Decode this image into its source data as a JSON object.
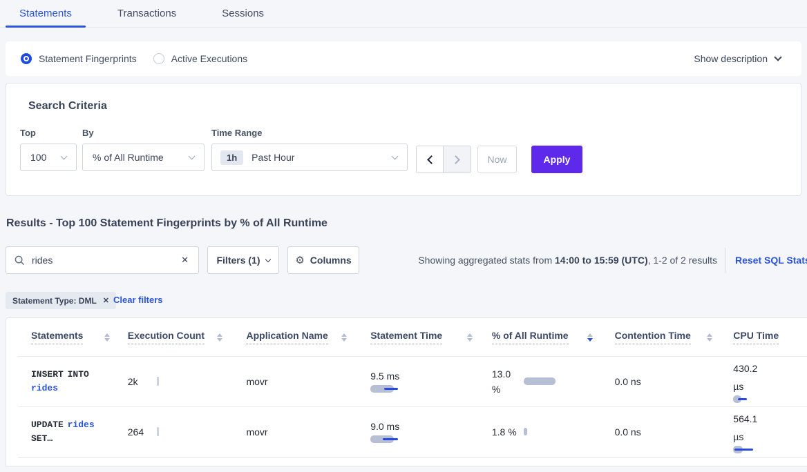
{
  "colors": {
    "accent_blue": "#2b55d8",
    "apply_purple": "#5f29ec",
    "bar_gray": "#b6bfd3",
    "bar_blue": "#2948dd",
    "chip_bg": "#e5e9f0"
  },
  "tabs": {
    "active_index": 0,
    "items": [
      {
        "label": "Statements"
      },
      {
        "label": "Transactions"
      },
      {
        "label": "Sessions"
      }
    ]
  },
  "view_bar": {
    "radios": [
      {
        "label": "Statement Fingerprints",
        "selected": true
      },
      {
        "label": "Active Executions",
        "selected": false
      }
    ],
    "show_description_label": "Show description"
  },
  "search_criteria": {
    "title": "Search Criteria",
    "top": {
      "label": "Top",
      "value": "100"
    },
    "by": {
      "label": "By",
      "value": "% of All Runtime"
    },
    "time_range": {
      "label": "Time Range",
      "badge": "1h",
      "value": "Past Hour"
    },
    "now_label": "Now",
    "apply_label": "Apply"
  },
  "results": {
    "heading": "Results - Top 100 Statement Fingerprints by % of All Runtime",
    "search_value": "rides",
    "clear_glyph": "✕",
    "filters_label": "Filters (1)",
    "columns_label": "Columns",
    "gear_glyph": "⚙",
    "stats_prefix": "Showing aggregated stats from ",
    "stats_strong": "14:00 to 15:59 (UTC)",
    "stats_suffix": ", 1-2 of 2 results",
    "reset_label": "Reset SQL Stats",
    "filter_chip": "Statement Type: DML",
    "chip_close_glyph": "✕",
    "clear_filters_label": "Clear filters"
  },
  "table": {
    "columns": [
      {
        "label": "Statements",
        "sorted": "none"
      },
      {
        "label": "Execution Count",
        "sorted": "none"
      },
      {
        "label": "Application Name",
        "sorted": "none"
      },
      {
        "label": "Statement Time",
        "sorted": "none"
      },
      {
        "label": "% of All Runtime",
        "sorted": "desc"
      },
      {
        "label": "Contention Time",
        "sorted": "none"
      },
      {
        "label": "CPU Time",
        "sorted": "none"
      }
    ],
    "rows": [
      {
        "statement_prefix": "INSERT INTO ",
        "statement_link": "rides",
        "statement_suffix": "",
        "execution_count": "2k",
        "application_name": "movr",
        "statement_time": "9.5 ms",
        "pct_of_runtime": "13.0 %",
        "contention_time": "0.0 ns",
        "cpu_time": "430.2 µs",
        "bars": {
          "stmt_pill_w": 34,
          "stmt_line_l": 20,
          "stmt_line_w": 20,
          "pct_pill_w": 46,
          "pct_line_l": 0,
          "pct_line_w": 0,
          "cpu_pill_w": 12,
          "cpu_line_l": 7,
          "cpu_line_w": 13
        }
      },
      {
        "statement_prefix": "UPDATE ",
        "statement_link": "rides",
        "statement_suffix": " SET…",
        "execution_count": "264",
        "application_name": "movr",
        "statement_time": "9.0 ms",
        "pct_of_runtime": "1.8 %",
        "contention_time": "0.0 ns",
        "cpu_time": "564.1 µs",
        "bars": {
          "stmt_pill_w": 34,
          "stmt_line_l": 18,
          "stmt_line_w": 22,
          "pct_pill_w": 5,
          "pct_line_l": 0,
          "pct_line_w": 0,
          "cpu_pill_w": 14,
          "cpu_line_l": 2,
          "cpu_line_w": 27
        }
      }
    ]
  }
}
